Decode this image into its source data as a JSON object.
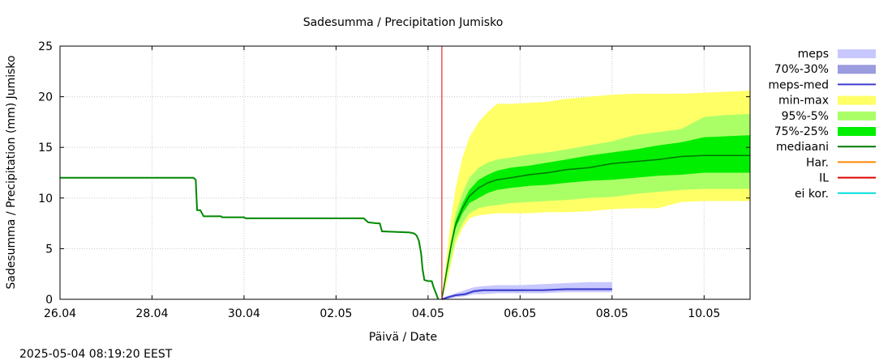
{
  "chart_data": {
    "type": "area",
    "title": "Sadesumma / Precipitation  Jumisko",
    "xlabel": "Päivä / Date",
    "ylabel": "Sadesumma / Precipitation (mm)  Jumisko",
    "x_ticks": [
      "26.04",
      "28.04",
      "30.04",
      "02.05",
      "04.05",
      "06.05",
      "08.05",
      "10.05"
    ],
    "x_tick_days": [
      0,
      2,
      4,
      6,
      8,
      10,
      12,
      14
    ],
    "x_range_days": [
      0,
      15
    ],
    "x_unit": "days from 26.04",
    "y_ticks": [
      "0",
      "5",
      "10",
      "15",
      "20",
      "25"
    ],
    "ylim": [
      0,
      25
    ],
    "grid": true,
    "legend_position": "right",
    "forecast_start_day": 8.3,
    "colors": {
      "meps": "#c8c8ff",
      "meps_70_30": "#9b9bdf",
      "meps_med": "#3b3bcf",
      "min_max": "#ffff66",
      "p95_5": "#aaff66",
      "p75_25": "#00ee00",
      "median": "#007700",
      "observed": "#008800",
      "har": "#ff8800",
      "il": "#dd0000",
      "ei_kor": "#00dddd"
    },
    "legend": [
      {
        "label": "meps",
        "kind": "band",
        "color": "#c8c8ff"
      },
      {
        "label": "70%-30%",
        "kind": "band",
        "color": "#9b9bdf"
      },
      {
        "label": "meps-med",
        "kind": "line",
        "color": "#3b3bcf"
      },
      {
        "label": "min-max",
        "kind": "band",
        "color": "#ffff66"
      },
      {
        "label": "95%-5%",
        "kind": "band",
        "color": "#aaff66"
      },
      {
        "label": "75%-25%",
        "kind": "band",
        "color": "#00ee00"
      },
      {
        "label": "mediaani",
        "kind": "line",
        "color": "#007700"
      },
      {
        "label": "Har.",
        "kind": "line",
        "color": "#ff8800"
      },
      {
        "label": "IL",
        "kind": "line",
        "color": "#dd0000"
      },
      {
        "label": "ei kor.",
        "kind": "line",
        "color": "#00dddd"
      }
    ],
    "observed": {
      "x": [
        0,
        2.9,
        2.95,
        2.98,
        3.05,
        3.12,
        3.5,
        3.52,
        4.0,
        4.03,
        6.6,
        6.7,
        6.9,
        6.95,
        7.0,
        7.05,
        7.6,
        7.7,
        7.75,
        7.8,
        7.85,
        7.88,
        7.92,
        8.0,
        8.08,
        8.12,
        8.18,
        8.22
      ],
      "y": [
        12,
        12,
        11.8,
        8.8,
        8.8,
        8.2,
        8.2,
        8.1,
        8.1,
        8.0,
        8.0,
        7.6,
        7.5,
        7.5,
        6.7,
        6.7,
        6.6,
        6.5,
        6.3,
        5.8,
        4.5,
        3.0,
        1.9,
        1.8,
        1.8,
        1.2,
        0.5,
        0.0
      ]
    },
    "ens_x": [
      8.3,
      8.4,
      8.5,
      8.6,
      8.75,
      8.9,
      9.1,
      9.3,
      9.5,
      9.8,
      10.2,
      10.6,
      11.0,
      11.5,
      12.0,
      12.5,
      13.0,
      13.5,
      14.0,
      14.5,
      15.0
    ],
    "min_max": {
      "lower": [
        0,
        1.5,
        3.5,
        5.5,
        7.0,
        8.0,
        8.3,
        8.4,
        8.5,
        8.5,
        8.5,
        8.6,
        8.6,
        8.7,
        8.9,
        9.0,
        9.0,
        9.6,
        9.7,
        9.7,
        9.7
      ],
      "upper": [
        0,
        4.0,
        8.0,
        11.0,
        14.0,
        16.0,
        17.5,
        18.5,
        19.3,
        19.3,
        19.4,
        19.5,
        19.8,
        20.0,
        20.2,
        20.3,
        20.3,
        20.3,
        20.4,
        20.5,
        20.6
      ]
    },
    "p95_5": {
      "lower": [
        0,
        2.0,
        4.0,
        6.0,
        7.5,
        8.5,
        9.0,
        9.2,
        9.3,
        9.5,
        9.6,
        9.7,
        9.8,
        10.0,
        10.1,
        10.4,
        10.6,
        10.8,
        10.9,
        10.9,
        10.9
      ],
      "upper": [
        0,
        3.2,
        6.0,
        8.5,
        10.5,
        12.0,
        13.0,
        13.5,
        13.8,
        14.0,
        14.3,
        14.5,
        14.8,
        15.2,
        15.6,
        16.2,
        16.5,
        16.8,
        18.0,
        18.2,
        18.3
      ]
    },
    "p75_25": {
      "lower": [
        0,
        2.5,
        5.0,
        7.0,
        8.5,
        9.5,
        10.0,
        10.5,
        10.8,
        11.0,
        11.2,
        11.3,
        11.5,
        11.7,
        11.8,
        12.0,
        12.2,
        12.3,
        12.5,
        12.5,
        12.5
      ],
      "upper": [
        0,
        2.9,
        5.6,
        7.8,
        9.5,
        10.8,
        11.8,
        12.3,
        12.7,
        13.0,
        13.2,
        13.5,
        13.8,
        14.2,
        14.5,
        14.8,
        15.2,
        15.5,
        16.0,
        16.1,
        16.2
      ]
    },
    "median": [
      0,
      2.7,
      5.3,
      7.4,
      9.0,
      10.2,
      11.0,
      11.5,
      11.8,
      12.0,
      12.3,
      12.5,
      12.8,
      13.0,
      13.4,
      13.6,
      13.8,
      14.1,
      14.2,
      14.2,
      14.2
    ],
    "meps_x": [
      8.3,
      8.4,
      8.6,
      8.8,
      9.0,
      9.2,
      9.5,
      10.0,
      10.5,
      11.0,
      11.5,
      12.0
    ],
    "meps_band": {
      "lower": [
        0,
        0.05,
        0.2,
        0.3,
        0.5,
        0.5,
        0.6,
        0.6,
        0.6,
        0.7,
        0.7,
        0.7
      ],
      "upper": [
        0,
        0.3,
        0.6,
        0.9,
        1.2,
        1.3,
        1.4,
        1.4,
        1.5,
        1.6,
        1.7,
        1.7
      ]
    },
    "meps_70_30": {
      "lower": [
        0,
        0.1,
        0.3,
        0.4,
        0.7,
        0.8,
        0.8,
        0.8,
        0.9,
        0.9,
        0.9,
        0.9
      ],
      "upper": [
        0,
        0.25,
        0.5,
        0.6,
        0.9,
        1.0,
        1.0,
        1.0,
        1.0,
        1.1,
        1.1,
        1.1
      ]
    },
    "meps_med": [
      0,
      0.15,
      0.4,
      0.5,
      0.8,
      0.9,
      0.9,
      0.9,
      0.9,
      1.0,
      1.0,
      1.0
    ]
  },
  "timestamp": "2025-05-04 08:19:20 EEST"
}
